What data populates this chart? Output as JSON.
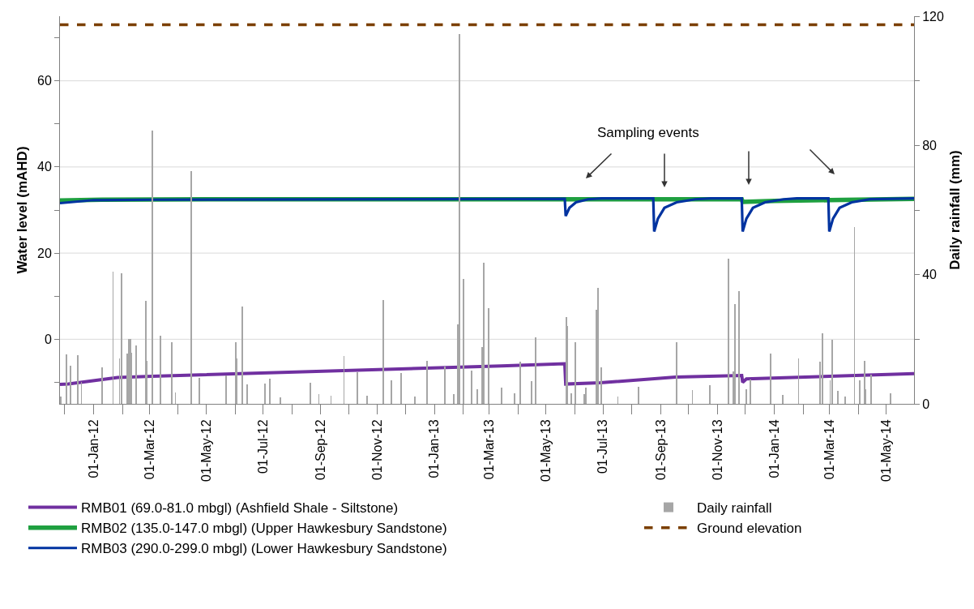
{
  "chart_data": {
    "type": "line",
    "ylabel": "Water level (mAHD)",
    "y2label": "Daily rainfall (mm)",
    "annotations": [
      "Sampling events"
    ],
    "xlim": [
      "2011-11-26",
      "2014-05-31"
    ],
    "xticks": [
      {
        "value": "2011-12-01",
        "label": null
      },
      {
        "value": "2012-01-01",
        "label": "01-Jan-12"
      },
      {
        "value": "2012-02-01",
        "label": null
      },
      {
        "value": "2012-03-01",
        "label": "01-Mar-12"
      },
      {
        "value": "2012-04-01",
        "label": null
      },
      {
        "value": "2012-05-01",
        "label": "01-May-12"
      },
      {
        "value": "2012-06-01",
        "label": null
      },
      {
        "value": "2012-07-01",
        "label": "01-Jul-12"
      },
      {
        "value": "2012-08-01",
        "label": null
      },
      {
        "value": "2012-09-01",
        "label": "01-Sep-12"
      },
      {
        "value": "2012-10-01",
        "label": null
      },
      {
        "value": "2012-11-01",
        "label": "01-Nov-12"
      },
      {
        "value": "2012-12-01",
        "label": null
      },
      {
        "value": "2013-01-01",
        "label": "01-Jan-13"
      },
      {
        "value": "2013-02-01",
        "label": null
      },
      {
        "value": "2013-03-01",
        "label": "01-Mar-13"
      },
      {
        "value": "2013-04-01",
        "label": null
      },
      {
        "value": "2013-05-01",
        "label": "01-May-13"
      },
      {
        "value": "2013-06-01",
        "label": null
      },
      {
        "value": "2013-07-01",
        "label": "01-Jul-13"
      },
      {
        "value": "2013-08-01",
        "label": null
      },
      {
        "value": "2013-09-01",
        "label": "01-Sep-13"
      },
      {
        "value": "2013-10-01",
        "label": null
      },
      {
        "value": "2013-11-01",
        "label": "01-Nov-13"
      },
      {
        "value": "2013-12-01",
        "label": null
      },
      {
        "value": "2014-01-01",
        "label": "01-Jan-14"
      },
      {
        "value": "2014-02-01",
        "label": null
      },
      {
        "value": "2014-03-01",
        "label": "01-Mar-14"
      },
      {
        "value": "2014-04-01",
        "label": null
      },
      {
        "value": "2014-05-01",
        "label": "01-May-14"
      }
    ],
    "ylim": [
      -15,
      75
    ],
    "yticks": [
      {
        "value": -10,
        "label": null
      },
      0,
      {
        "value": 10,
        "label": null
      },
      20,
      {
        "value": 30,
        "label": null
      },
      40,
      {
        "value": 50,
        "label": null
      },
      60,
      {
        "value": 70,
        "label": null
      }
    ],
    "y2lim": [
      0,
      120
    ],
    "y2ticks": [
      0,
      {
        "value": 20,
        "label": null
      },
      40,
      {
        "value": 60,
        "label": null
      },
      80,
      {
        "value": 100,
        "label": null
      },
      120
    ],
    "grid": "y",
    "legend": "bottom",
    "series": [
      {
        "name": "RMB01 (69.0-81.0 mbgl) (Ashfield Shale - Siltstone)",
        "color": "#7030a0",
        "x": [
          "2011-11-26",
          "2011-12-05",
          "2012-01-27",
          "2012-03-04",
          "2013-03-14",
          "2013-05-21",
          "2013-05-22",
          "2013-06-28",
          "2013-09-17",
          "2013-11-27",
          "2013-11-28",
          "2013-12-02",
          "2014-05-31"
        ],
        "values": [
          -10.5,
          -10.4,
          -8.9,
          -8.6,
          -6.2,
          -5.7,
          -10.4,
          -10.1,
          -8.8,
          -8.4,
          -10.0,
          -9.2,
          -8.0
        ]
      },
      {
        "name": "Daily rainfall",
        "type": "bar",
        "axis": "y2",
        "color": "#a6a6a6",
        "x": [
          "2011-11-27",
          "2011-12-03",
          "2011-12-07",
          "2011-12-15",
          "2011-12-19",
          "2012-01-10",
          "2012-01-22",
          "2012-01-29",
          "2012-01-31",
          "2012-02-06",
          "2012-02-08",
          "2012-02-10",
          "2012-02-11",
          "2012-02-16",
          "2012-02-26",
          "2012-02-27",
          "2012-03-04",
          "2012-03-13",
          "2012-03-25",
          "2012-03-29",
          "2012-04-15",
          "2012-04-24",
          "2012-05-22",
          "2012-06-02",
          "2012-06-03",
          "2012-06-09",
          "2012-06-14",
          "2012-07-03",
          "2012-07-08",
          "2012-07-20",
          "2012-08-21",
          "2012-08-30",
          "2012-09-12",
          "2012-09-26",
          "2012-10-10",
          "2012-10-21",
          "2012-11-07",
          "2012-11-16",
          "2012-11-26",
          "2012-12-11",
          "2012-12-24",
          "2013-01-12",
          "2013-01-22",
          "2013-01-26",
          "2013-01-28",
          "2013-02-01",
          "2013-02-10",
          "2013-02-16",
          "2013-02-21",
          "2013-02-23",
          "2013-02-28",
          "2013-03-14",
          "2013-03-28",
          "2013-04-03",
          "2013-04-15",
          "2013-04-20",
          "2013-05-23",
          "2013-05-24",
          "2013-05-28",
          "2013-06-01",
          "2013-06-11",
          "2013-06-13",
          "2013-06-24",
          "2013-06-26",
          "2013-06-29",
          "2013-07-17",
          "2013-08-08",
          "2013-09-18",
          "2013-10-05",
          "2013-10-24",
          "2013-11-13",
          "2013-11-18",
          "2013-11-20",
          "2013-11-24",
          "2013-12-02",
          "2013-12-06",
          "2013-12-28",
          "2014-01-10",
          "2014-01-27",
          "2014-02-19",
          "2014-02-22",
          "2014-03-02",
          "2014-03-04",
          "2014-03-10",
          "2014-03-18",
          "2014-03-28",
          "2014-04-03",
          "2014-04-08",
          "2014-04-09",
          "2014-04-15",
          "2014-05-06"
        ],
        "values": [
          2.3,
          15.4,
          11.8,
          15.1,
          6.8,
          11.3,
          41,
          14,
          40.3,
          15.6,
          20.2,
          20.2,
          15.9,
          18.1,
          32,
          13.4,
          84.7,
          21.2,
          19.2,
          3.5,
          72,
          8.1,
          8.8,
          19,
          14.1,
          30.1,
          6,
          6.4,
          7.8,
          2,
          6.6,
          3.1,
          2.6,
          14.9,
          9.8,
          2.5,
          32.1,
          7.4,
          9.6,
          2.3,
          13.2,
          11.5,
          3.1,
          24.5,
          114.5,
          38.7,
          10.3,
          4.5,
          17.7,
          43.6,
          29.7,
          4.9,
          3.2,
          13.1,
          7.1,
          20.7,
          26.9,
          24.1,
          3.3,
          19.1,
          3,
          4.9,
          29,
          36,
          11.4,
          2.3,
          5.3,
          19.1,
          4.3,
          5.8,
          45,
          10.1,
          31,
          35,
          4.5,
          7.6,
          15.6,
          2.8,
          14,
          13.1,
          21.8,
          7.4,
          19.9,
          4.1,
          2.3,
          54.8,
          7.3,
          13.4,
          4.5,
          9.1,
          3.3
        ]
      },
      {
        "name": "RMB02 (135.0-147.0 mbgl) (Upper Hawkesbury Sandstone)",
        "color": "#1fa040",
        "x": [
          "2011-11-26",
          "2012-01-10",
          "2012-06-01",
          "2013-11-27",
          "2013-11-28",
          "2014-01-01",
          "2014-03-01",
          "2014-05-31"
        ],
        "values": [
          32.2,
          32.4,
          32.5,
          32.5,
          31.9,
          32.1,
          32.3,
          32.6
        ]
      },
      {
        "name": "RMB03 (290.0-299.0 mbgl) (Lower Hawkesbury Sandstone)",
        "color": "#0033a0",
        "x": [
          "2011-11-26",
          "2012-01-01",
          "2012-03-04",
          "2013-05-21",
          "2013-05-22",
          "2013-05-26",
          "2013-06-02",
          "2013-06-15",
          "2013-06-30",
          "2013-08-24",
          "2013-08-25",
          "2013-08-29",
          "2013-09-05",
          "2013-09-18",
          "2013-10-08",
          "2013-10-25",
          "2013-11-27",
          "2013-11-28",
          "2013-12-02",
          "2013-12-09",
          "2013-12-22",
          "2014-01-11",
          "2014-01-25",
          "2014-02-28",
          "2014-03-01",
          "2014-03-05",
          "2014-03-12",
          "2014-03-25",
          "2014-04-14",
          "2014-05-31"
        ],
        "values": [
          31.6,
          32.3,
          32.4,
          32.6,
          28.6,
          30.5,
          31.8,
          32.5,
          32.7,
          32.7,
          25.0,
          28.0,
          30.5,
          31.8,
          32.5,
          32.7,
          32.7,
          25.0,
          28.0,
          30.5,
          31.8,
          32.5,
          32.7,
          32.7,
          25.0,
          28.0,
          30.5,
          31.8,
          32.5,
          32.7
        ]
      },
      {
        "name": "Ground elevation",
        "line_style": "dashed",
        "color": "#7b3f00",
        "x": [
          "2011-11-26",
          "2014-05-31"
        ],
        "values": [
          73,
          73
        ]
      }
    ]
  }
}
